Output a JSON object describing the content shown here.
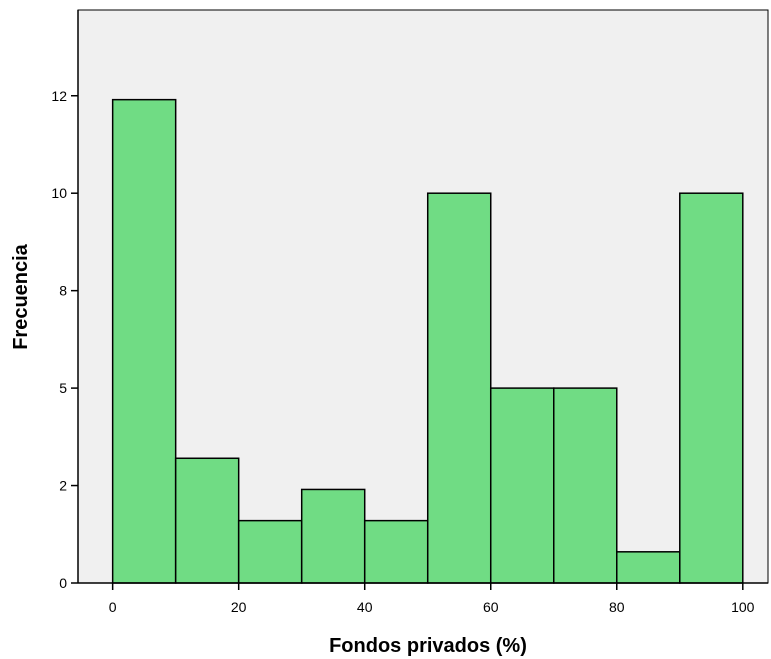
{
  "chart_data": {
    "type": "bar",
    "title": "",
    "xlabel": "Fondos privados (%)",
    "ylabel": "Frecuencia",
    "bins": [
      {
        "from": 0,
        "to": 10,
        "value": 12.4
      },
      {
        "from": 10,
        "to": 20,
        "value": 3.2
      },
      {
        "from": 20,
        "to": 30,
        "value": 1.6
      },
      {
        "from": 30,
        "to": 40,
        "value": 2.4
      },
      {
        "from": 40,
        "to": 50,
        "value": 1.6
      },
      {
        "from": 50,
        "to": 60,
        "value": 10
      },
      {
        "from": 60,
        "to": 70,
        "value": 5
      },
      {
        "from": 70,
        "to": 80,
        "value": 5
      },
      {
        "from": 80,
        "to": 90,
        "value": 0.8
      },
      {
        "from": 90,
        "to": 100,
        "value": 10
      }
    ],
    "xticks": [
      {
        "value": 0,
        "label": "0"
      },
      {
        "value": 20,
        "label": "20"
      },
      {
        "value": 40,
        "label": "40"
      },
      {
        "value": 60,
        "label": "60"
      },
      {
        "value": 80,
        "label": "80"
      },
      {
        "value": 100,
        "label": "100"
      }
    ],
    "yticks": [
      {
        "value": 0,
        "label": "0"
      },
      {
        "value": 2.5,
        "label": "2"
      },
      {
        "value": 5,
        "label": "5"
      },
      {
        "value": 7.5,
        "label": "8"
      },
      {
        "value": 10,
        "label": "10"
      },
      {
        "value": 12.5,
        "label": "12"
      }
    ],
    "xlim": [
      -5.5,
      104
    ],
    "ylim": [
      0,
      14.7
    ],
    "grid": false,
    "colors": {
      "bar_fill": "#70dc84",
      "bar_stroke": "#000000",
      "plot_background": "#f0f0f0"
    }
  }
}
